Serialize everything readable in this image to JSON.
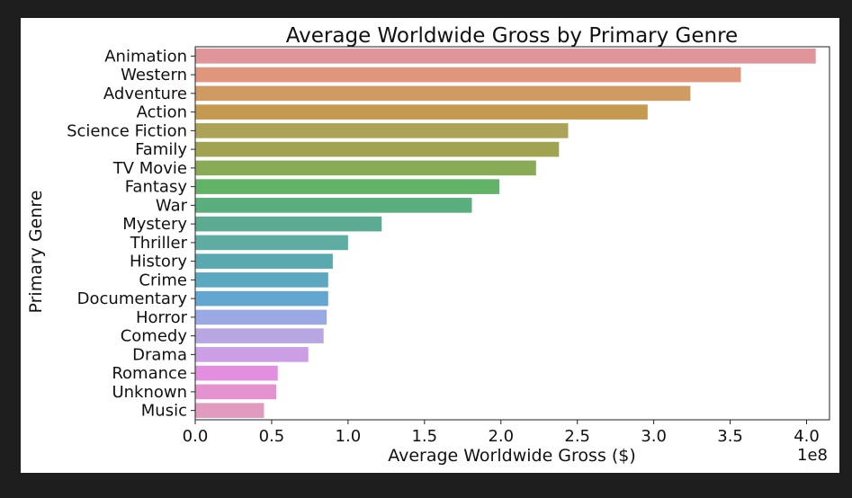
{
  "chart_data": {
    "type": "bar",
    "orientation": "horizontal",
    "title": "Average Worldwide Gross by Primary Genre",
    "xlabel": "Average Worldwide Gross ($)",
    "ylabel": "Primary Genre",
    "x_scale_label": "1e8",
    "xlim": [
      0,
      4.15
    ],
    "xticks": [
      "0.0",
      "0.5",
      "1.0",
      "1.5",
      "2.0",
      "2.5",
      "3.0",
      "3.5",
      "4.0"
    ],
    "categories": [
      "Animation",
      "Western",
      "Adventure",
      "Action",
      "Science Fiction",
      "Family",
      "TV Movie",
      "Fantasy",
      "War",
      "Mystery",
      "Thriller",
      "History",
      "Crime",
      "Documentary",
      "Horror",
      "Comedy",
      "Drama",
      "Romance",
      "Unknown",
      "Music"
    ],
    "values": [
      4.06,
      3.57,
      3.24,
      2.96,
      2.44,
      2.38,
      2.23,
      1.99,
      1.81,
      1.22,
      1.0,
      0.9,
      0.87,
      0.87,
      0.86,
      0.84,
      0.74,
      0.54,
      0.53,
      0.45
    ],
    "colors": [
      "#e0959a",
      "#e0957d",
      "#d09a63",
      "#c59a50",
      "#aca356",
      "#a0a350",
      "#8aab55",
      "#62b268",
      "#5aae7d",
      "#5daa93",
      "#5eaca2",
      "#5aa8b0",
      "#5ca8c0",
      "#63a6d0",
      "#9aa9e3",
      "#b8a6e3",
      "#cb9ee6",
      "#e48ee0",
      "#e493cf",
      "#e09bbf"
    ],
    "grid": false,
    "legend": "none"
  }
}
